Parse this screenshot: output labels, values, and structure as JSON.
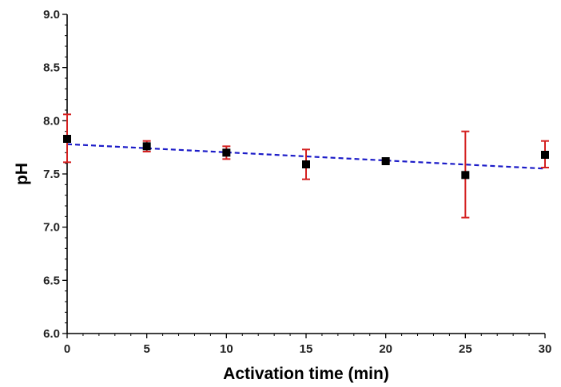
{
  "chart_data": {
    "type": "scatter",
    "xlabel": "Activation time (min)",
    "ylabel": "pH",
    "xlim": [
      0,
      30
    ],
    "ylim": [
      6.0,
      9.0
    ],
    "x_ticks": [
      "0",
      "5",
      "10",
      "15",
      "20",
      "25",
      "30"
    ],
    "y_ticks": [
      "6.0",
      "6.5",
      "7.0",
      "7.5",
      "8.0",
      "8.5",
      "9.0"
    ],
    "grid": false,
    "legend": "none",
    "series": [
      {
        "x": [
          0,
          5,
          10,
          15,
          20,
          25,
          30
        ],
        "y": [
          7.83,
          7.76,
          7.7,
          7.59,
          7.62,
          7.49,
          7.68
        ],
        "error_low": [
          7.61,
          7.71,
          7.64,
          7.45,
          7.61,
          7.09,
          7.56
        ],
        "error_high": [
          8.06,
          7.81,
          7.76,
          7.73,
          7.63,
          7.9,
          7.81
        ],
        "marker": "square",
        "color": "#000000",
        "error_color": "#d42020"
      }
    ],
    "trendline": {
      "style": "dashed",
      "color": "#1c1cc8",
      "x": [
        0,
        30
      ],
      "y": [
        7.78,
        7.55
      ]
    }
  }
}
